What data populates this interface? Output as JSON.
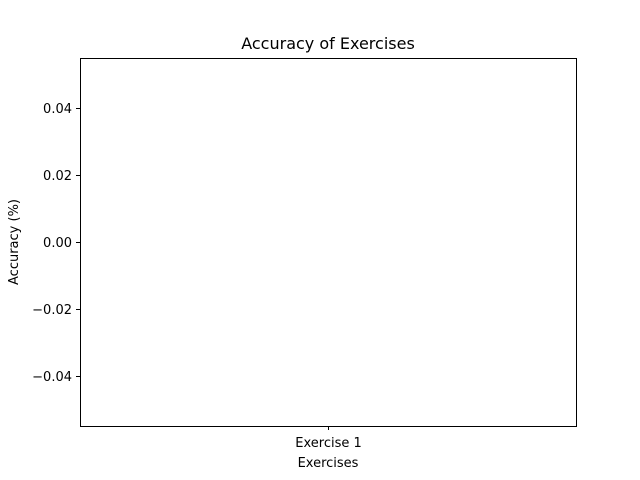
{
  "chart_data": {
    "type": "bar",
    "title": "Accuracy of Exercises",
    "xlabel": "Exercises",
    "ylabel": "Accuracy (%)",
    "categories": [
      "Exercise 1"
    ],
    "values": [
      0
    ],
    "ylim": [
      -0.055,
      0.055
    ],
    "yticks": [
      0.04,
      0.02,
      0.0,
      -0.02,
      -0.04
    ],
    "ytick_labels": [
      "0.04",
      "0.02",
      "0.00",
      "−0.02",
      "−0.04"
    ],
    "grid": false,
    "legend": "none"
  }
}
